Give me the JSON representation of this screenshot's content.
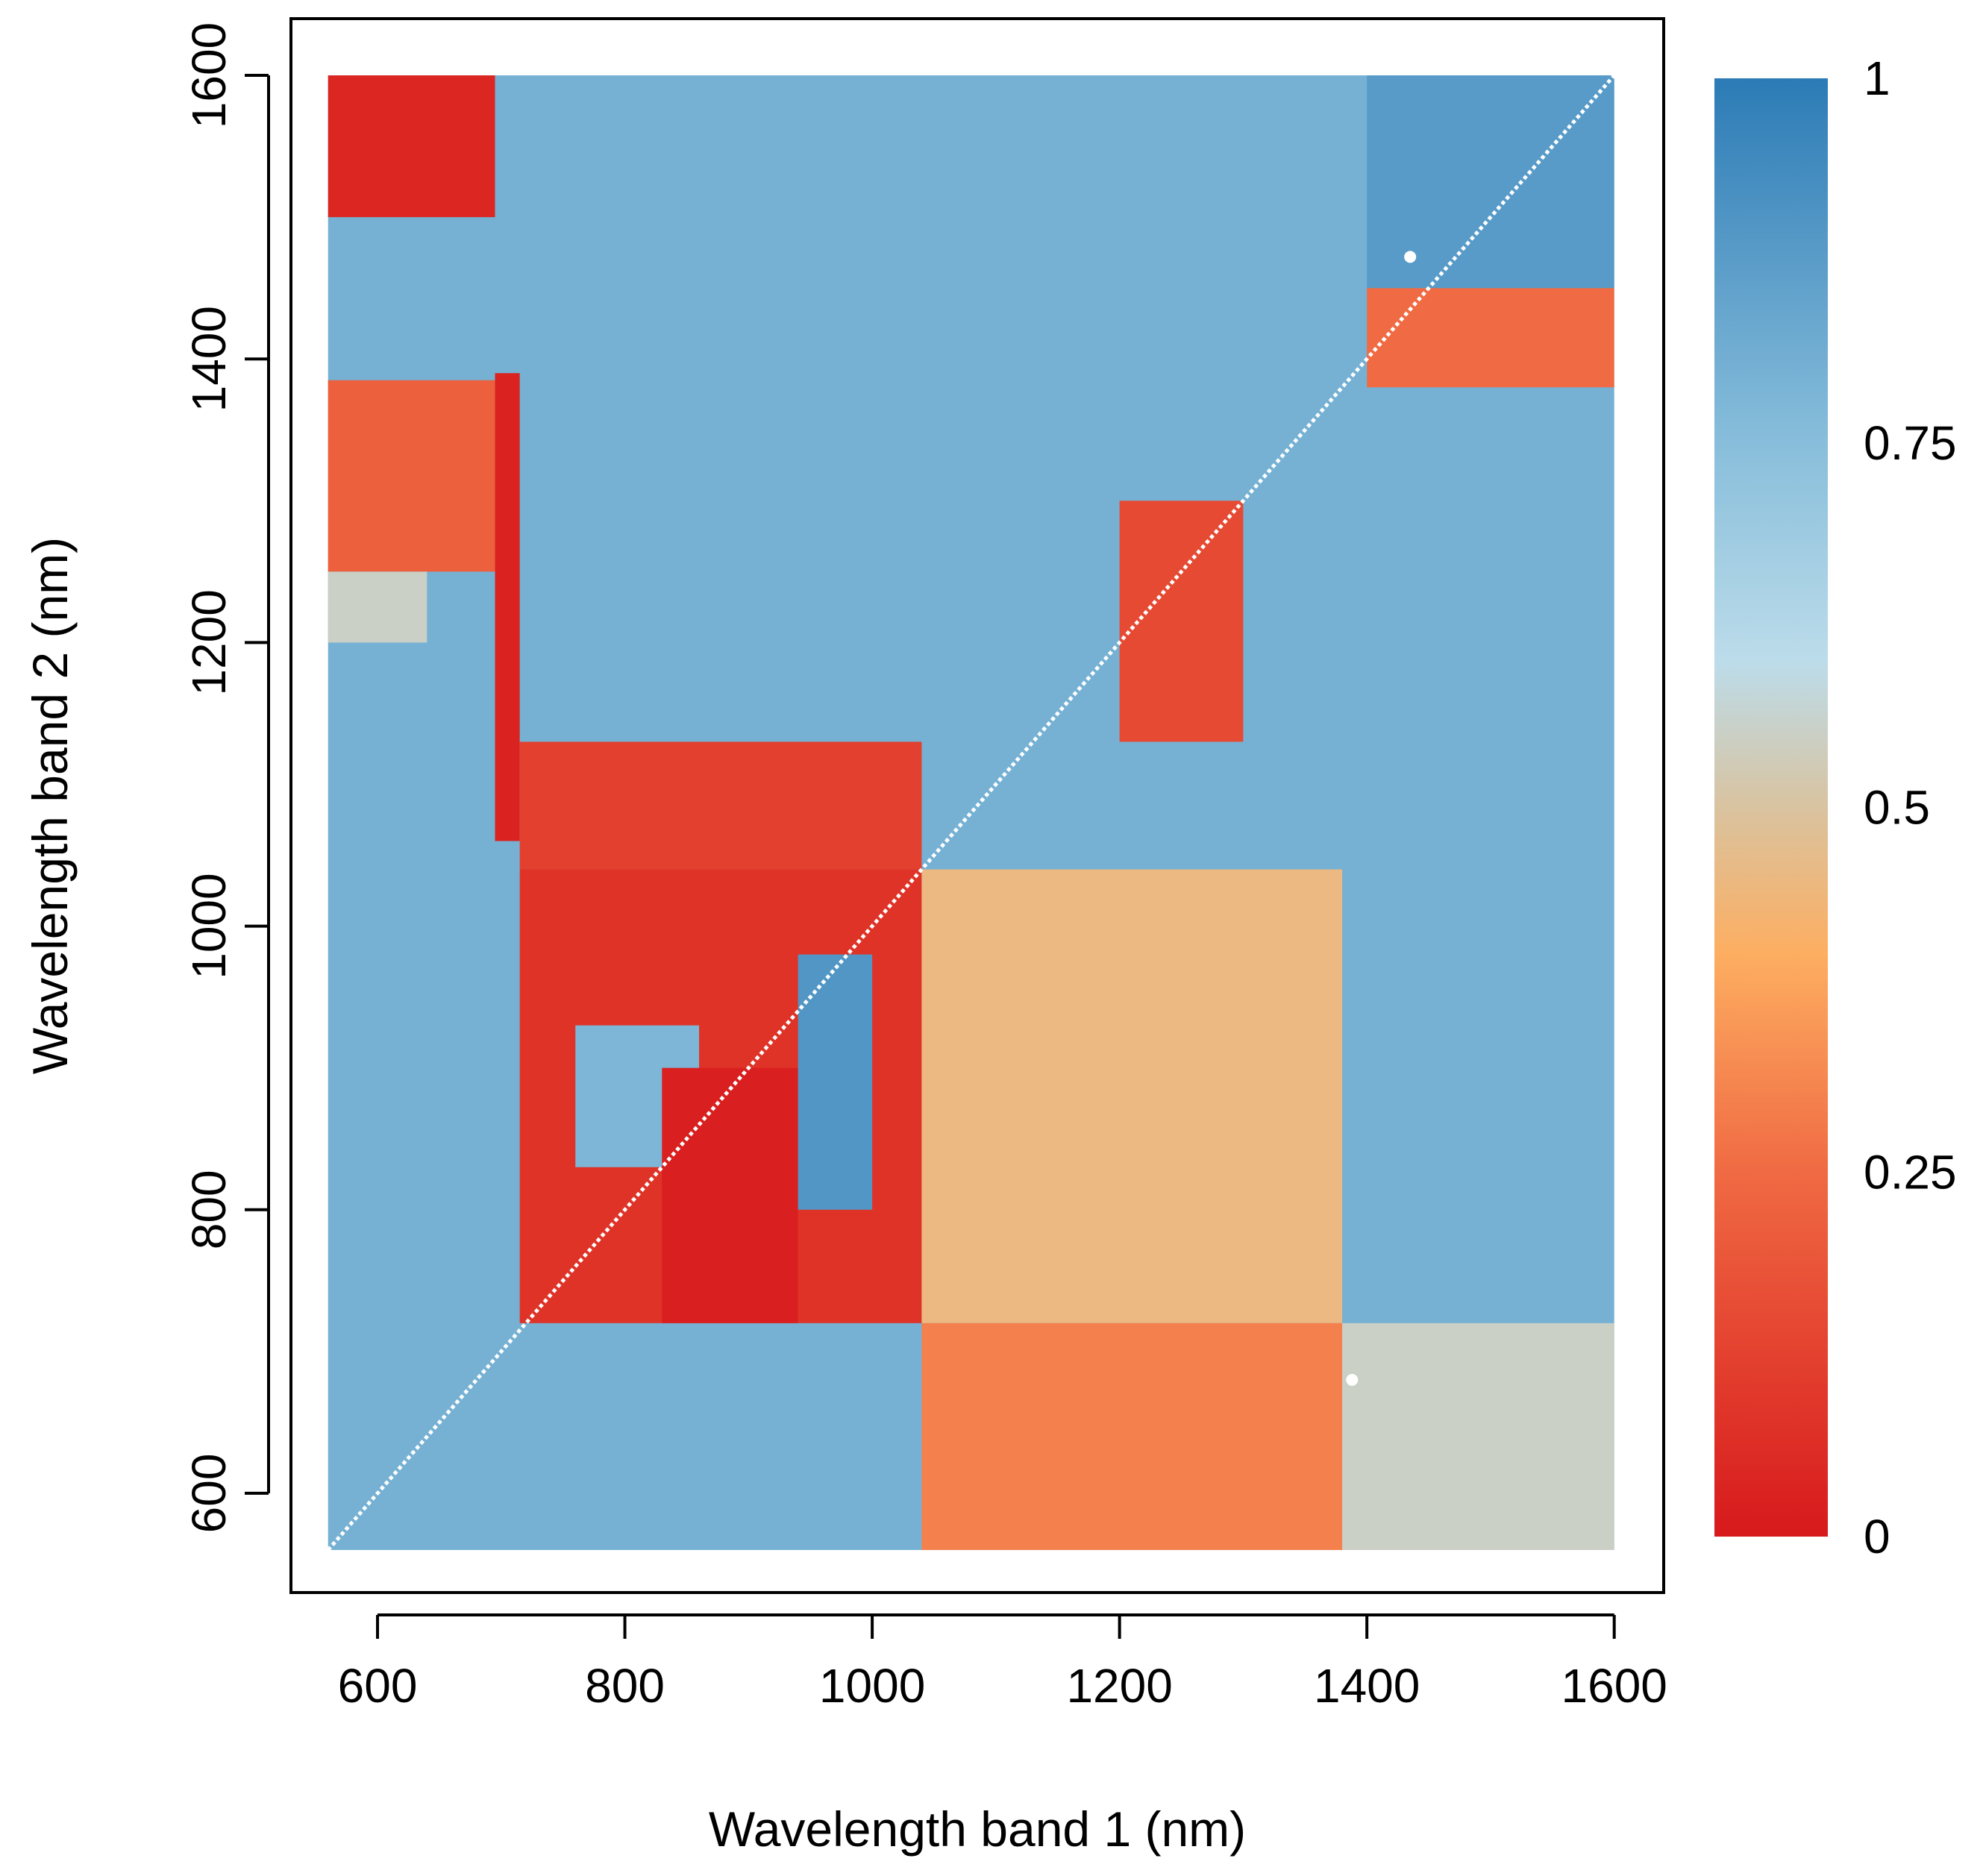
{
  "chart_data": {
    "type": "heatmap",
    "title": "",
    "xlabel": "Wavelength band 1 (nm)",
    "ylabel": "Wavelength band 2 (nm)",
    "xlim": [
      530,
      1640
    ],
    "ylim": [
      530,
      1640
    ],
    "x_range": [
      560,
      1600
    ],
    "y_range": [
      560,
      1600
    ],
    "x_ticks": [
      "600",
      "800",
      "1000",
      "1200",
      "1400",
      "1600"
    ],
    "y_ticks": [
      "600",
      "800",
      "1000",
      "1200",
      "1400",
      "1600"
    ],
    "colorbar": {
      "min": 0,
      "max": 1,
      "tick_values": [
        0,
        0.25,
        0.5,
        0.75,
        1
      ],
      "tick_labels": [
        "0",
        "0.25",
        "0.5",
        "0.75",
        "1"
      ],
      "stops": [
        {
          "v": 0,
          "color": "#d7191c"
        },
        {
          "v": 0.25,
          "color": "#f06a43"
        },
        {
          "v": 0.4,
          "color": "#fdae61"
        },
        {
          "v": 0.5,
          "color": "#d9c3a0"
        },
        {
          "v": 0.6,
          "color": "#bcdcea"
        },
        {
          "v": 0.75,
          "color": "#88bedb"
        },
        {
          "v": 1,
          "color": "#2c7bb6"
        }
      ]
    },
    "background_value": 0.8,
    "regions": [
      {
        "x": [
          560,
          695
        ],
        "y": [
          1500,
          1600
        ],
        "value": 0.04
      },
      {
        "x": [
          560,
          695
        ],
        "y": [
          1250,
          1385
        ],
        "value": 0.22
      },
      {
        "x": [
          560,
          640
        ],
        "y": [
          1200,
          1250
        ],
        "value": 0.55
      },
      {
        "x": [
          695,
          715
        ],
        "y": [
          1060,
          1390
        ],
        "value": 0.03
      },
      {
        "x": [
          715,
          1040
        ],
        "y": [
          1040,
          1130
        ],
        "value": 0.12
      },
      {
        "x": [
          715,
          1040
        ],
        "y": [
          720,
          1040
        ],
        "value": 0.08
      },
      {
        "x": [
          760,
          860
        ],
        "y": [
          830,
          930
        ],
        "value": 0.78
      },
      {
        "x": [
          830,
          940
        ],
        "y": [
          720,
          900
        ],
        "value": 0.02
      },
      {
        "x": [
          940,
          1000
        ],
        "y": [
          800,
          980
        ],
        "value": 0.9
      },
      {
        "x": [
          1040,
          1380
        ],
        "y": [
          720,
          1040
        ],
        "value": 0.45
      },
      {
        "x": [
          1380,
          1600
        ],
        "y": [
          560,
          720
        ],
        "value": 0.55
      },
      {
        "x": [
          1040,
          1380
        ],
        "y": [
          560,
          720
        ],
        "value": 0.3
      },
      {
        "x": [
          1200,
          1300
        ],
        "y": [
          1130,
          1300
        ],
        "value": 0.15
      },
      {
        "x": [
          1400,
          1600
        ],
        "y": [
          1380,
          1450
        ],
        "value": 0.25
      },
      {
        "x": [
          1400,
          1600
        ],
        "y": [
          1450,
          1600
        ],
        "value": 0.88
      }
    ],
    "diagonal": {
      "from": [
        560,
        560
      ],
      "to": [
        1600,
        1600
      ],
      "color": "#ffffff"
    },
    "highlight_points": [
      {
        "x": 1435,
        "y": 1472,
        "color": "#ffffff"
      },
      {
        "x": 1388,
        "y": 680,
        "color": "#ffffff"
      }
    ],
    "grid": false,
    "legend": "right"
  }
}
